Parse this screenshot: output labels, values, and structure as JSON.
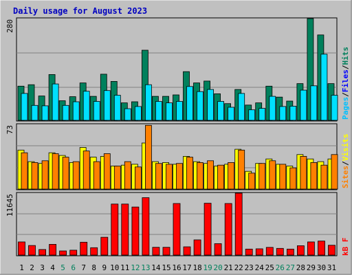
{
  "title": "Daily usage for August 2023",
  "colors": {
    "frame_bg": "#c0c0c0",
    "plot_bg": "#c0c0c0",
    "gridline": "#808080",
    "title": "#0000c0",
    "hits": "#00805c",
    "files": "#00e0ff",
    "pages": "#00c0ff",
    "visits": "#ffff00",
    "sites": "#ff8000",
    "kbytes": "#ff0000",
    "weekday_label": "#000000",
    "weekend_label": "#00805c"
  },
  "chart_data": [
    {
      "type": "bar",
      "name": "hits-files-pages",
      "ymax_label": "280",
      "ymax": 280,
      "grid": true,
      "legend": [
        {
          "text": "Pages",
          "color": "#00c0ff"
        },
        {
          "text": "Files",
          "color": "#0000ff"
        },
        {
          "text": "Hits",
          "color": "#00805c"
        }
      ],
      "series": [
        {
          "name": "Hits",
          "values": [
            94,
            98,
            67,
            126,
            54,
            65,
            103,
            66,
            127,
            107,
            48,
            51,
            193,
            66,
            66,
            70,
            134,
            103,
            108,
            73,
            46,
            85,
            42,
            48,
            94,
            64,
            53,
            101,
            280,
            235,
            101
          ]
        },
        {
          "name": "Files",
          "values": [
            74,
            41,
            40,
            100,
            41,
            51,
            80,
            52,
            82,
            69,
            32,
            38,
            98,
            52,
            48,
            52,
            93,
            79,
            85,
            52,
            36,
            74,
            29,
            33,
            66,
            38,
            39,
            83,
            95,
            182,
            69
          ]
        }
      ]
    },
    {
      "type": "bar",
      "name": "visits-sites",
      "ymax_label": "73",
      "ymax": 73,
      "grid": true,
      "legend": [
        {
          "text": "Sites",
          "color": "#ff8000"
        },
        {
          "text": "/",
          "color": "#000000"
        },
        {
          "text": "Visits",
          "color": "#ffff00"
        }
      ],
      "series": [
        {
          "name": "Visits",
          "values": [
            44,
            31,
            29,
            41,
            38,
            30,
            47,
            36,
            37,
            26,
            27,
            28,
            52,
            31,
            30,
            28,
            37,
            31,
            29,
            26,
            28,
            45,
            20,
            29,
            34,
            28,
            26,
            39,
            34,
            31,
            34
          ]
        },
        {
          "name": "Sites",
          "values": [
            41,
            30,
            32,
            40,
            36,
            31,
            43,
            31,
            40,
            26,
            31,
            25,
            72,
            29,
            28,
            29,
            36,
            30,
            32,
            27,
            30,
            44,
            18,
            29,
            32,
            28,
            24,
            37,
            30,
            27,
            39
          ]
        }
      ]
    },
    {
      "type": "bar",
      "name": "kbytes",
      "ymax_label": "11645",
      "ymax": 11645,
      "grid": true,
      "legend": [
        {
          "text": "kB F",
          "color": "#ff0000"
        }
      ],
      "series": [
        {
          "name": "kB F",
          "values": [
            2470,
            1800,
            1050,
            2020,
            780,
            925,
            2420,
            1380,
            3350,
            9600,
            9600,
            9050,
            10800,
            1460,
            1460,
            9700,
            1550,
            2860,
            9750,
            2150,
            9700,
            11645,
            1120,
            1180,
            1450,
            1250,
            1120,
            1760,
            2470,
            2640,
            1850
          ]
        }
      ]
    }
  ],
  "days": [
    "1",
    "2",
    "3",
    "4",
    "5",
    "6",
    "7",
    "8",
    "9",
    "10",
    "11",
    "12",
    "13",
    "14",
    "15",
    "16",
    "17",
    "18",
    "19",
    "20",
    "21",
    "22",
    "23",
    "24",
    "25",
    "26",
    "27",
    "28",
    "29",
    "30",
    "31"
  ],
  "weekend_days": [
    "5",
    "6",
    "12",
    "13",
    "19",
    "20",
    "26",
    "27"
  ]
}
